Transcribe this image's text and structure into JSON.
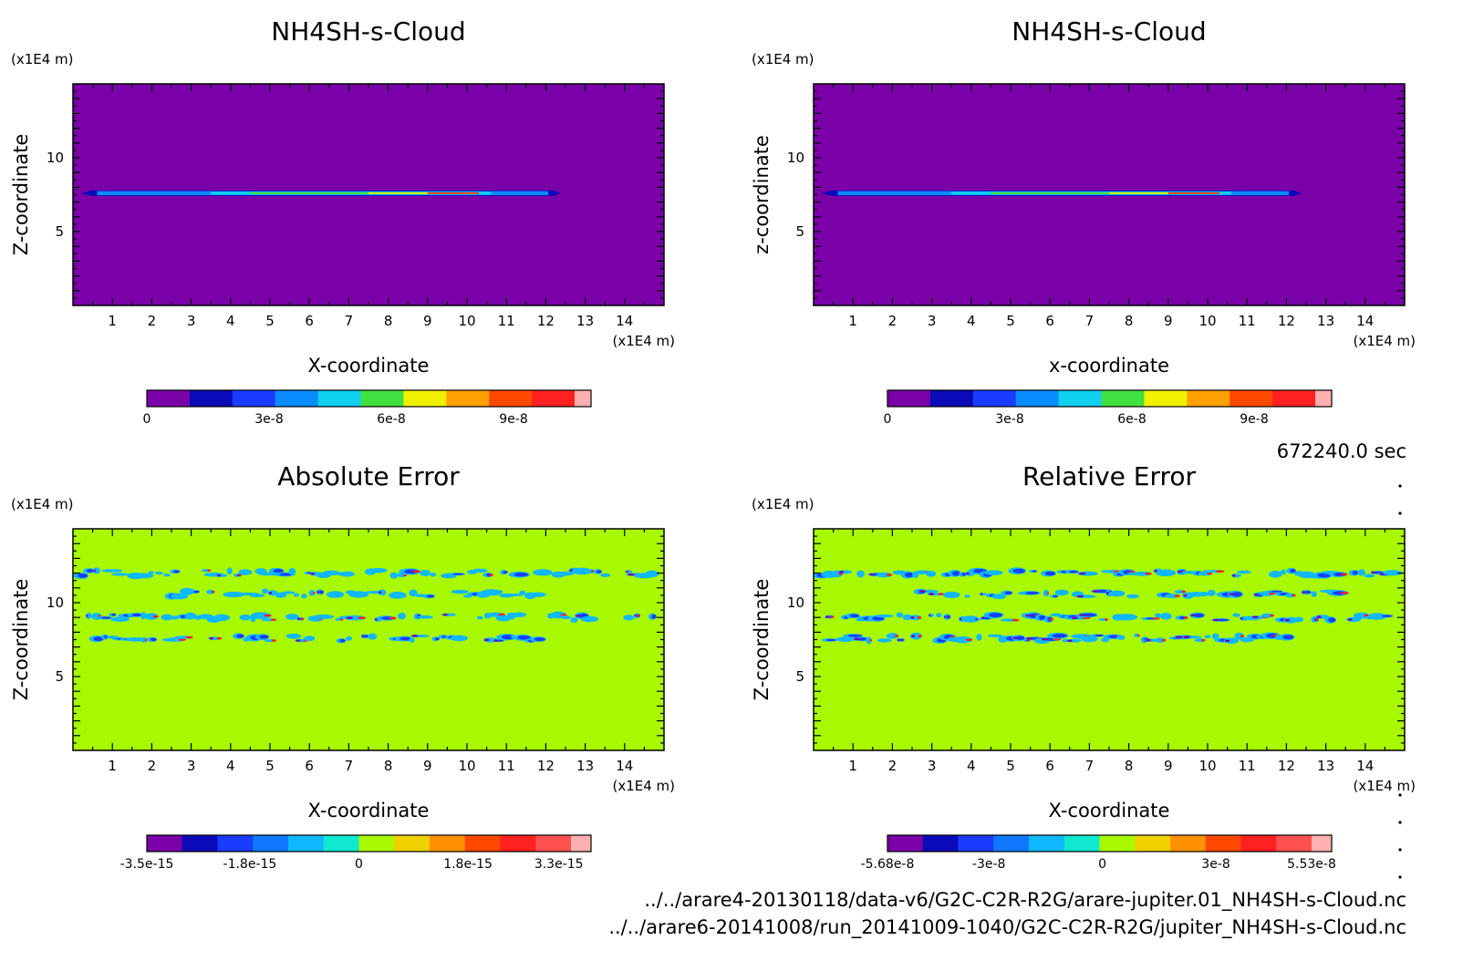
{
  "figure": {
    "time_label": "672240.0 sec",
    "file_lines": [
      "../../arare4-20130118/data-v6/G2C-C2R-R2G/arare-jupiter.01_NH4SH-s-Cloud.nc",
      "../../arare6-20141008/run_20141009-1040/G2C-C2R-R2G/jupiter_NH4SH-s-Cloud.nc"
    ]
  },
  "colors": {
    "cloud_scale": [
      "#7a00a8",
      "#0a0ab8",
      "#1a3cff",
      "#0a8cff",
      "#10d0f0",
      "#40e040",
      "#f0f000",
      "#ffa000",
      "#ff4800",
      "#ff2020",
      "#ffb0b0"
    ],
    "error_scale": [
      "#7a00a8",
      "#0a0ab8",
      "#1a3cff",
      "#1078ff",
      "#10b8ff",
      "#10e8d0",
      "#a8f800",
      "#f0d000",
      "#ff9000",
      "#ff4800",
      "#ff2020",
      "#ff5050",
      "#ffb0b0"
    ],
    "cloud_bg": "#7a00a8",
    "error_bg": "#a8f800"
  },
  "chart_data": [
    {
      "type": "heatmap",
      "title": "NH4SH-s-Cloud",
      "unit_label_y": "(x1E4 m)",
      "unit_label_x": "(x1E4 m)",
      "xlabel": "X-coordinate",
      "ylabel": "Z-coordinate",
      "xlim": [
        0,
        15
      ],
      "ylim": [
        0,
        15
      ],
      "xticks": [
        1,
        2,
        3,
        4,
        5,
        6,
        7,
        8,
        9,
        10,
        11,
        12,
        13,
        14
      ],
      "yticks": [
        5,
        10
      ],
      "colorbar": {
        "min": 0,
        "max": 1.05e-07,
        "tick_labels": [
          "0",
          "3e-8",
          "6e-8",
          "9e-8"
        ],
        "tick_values": [
          0,
          3e-08,
          6e-08,
          9e-08
        ]
      },
      "features": [
        {
          "kind": "cloud_layer",
          "x_start": 0.2,
          "x_end": 12.2,
          "z": 7.6,
          "peak_x": 10
        }
      ]
    },
    {
      "type": "heatmap",
      "title": "NH4SH-s-Cloud",
      "unit_label_y": "(x1E4 m)",
      "unit_label_x": "(x1E4 m)",
      "xlabel": "x-coordinate",
      "ylabel": "z-coordinate",
      "xlim": [
        0,
        15
      ],
      "ylim": [
        0,
        15
      ],
      "xticks": [
        1,
        2,
        3,
        4,
        5,
        6,
        7,
        8,
        9,
        10,
        11,
        12,
        13,
        14
      ],
      "yticks": [
        5,
        10
      ],
      "colorbar": {
        "min": 0,
        "max": 1.05e-07,
        "tick_labels": [
          "0",
          "3e-8",
          "6e-8",
          "9e-8"
        ],
        "tick_values": [
          0,
          3e-08,
          6e-08,
          9e-08
        ]
      },
      "features": [
        {
          "kind": "cloud_layer",
          "x_start": 0.2,
          "x_end": 12.2,
          "z": 7.6,
          "peak_x": 10
        }
      ]
    },
    {
      "type": "heatmap",
      "title": "Absolute Error",
      "unit_label_y": "(x1E4 m)",
      "unit_label_x": "(x1E4 m)",
      "xlabel": "X-coordinate",
      "ylabel": "Z-coordinate",
      "xlim": [
        0,
        15
      ],
      "ylim": [
        0,
        15
      ],
      "xticks": [
        1,
        2,
        3,
        4,
        5,
        6,
        7,
        8,
        9,
        10,
        11,
        12,
        13,
        14
      ],
      "yticks": [
        5,
        10
      ],
      "colorbar": {
        "min": -3.5e-15,
        "max": 3.5e-15,
        "tick_labels": [
          "-3.5e-15",
          "-1.8e-15",
          "0",
          "1.8e-15",
          "3.3e-15"
        ],
        "tick_values": [
          -3.5e-15,
          -1.8e-15,
          0,
          1.8e-15,
          3.3e-15
        ]
      },
      "error_bands": [
        {
          "z": 12.0,
          "x_start": 0.2,
          "x_end": 14.9,
          "intensity": 0.35
        },
        {
          "z": 10.6,
          "x_start": 2.5,
          "x_end": 12.0,
          "intensity": 0.25
        },
        {
          "z": 9.0,
          "x_start": 0.2,
          "x_end": 14.9,
          "intensity": 0.4
        },
        {
          "z": 7.6,
          "x_start": 0.2,
          "x_end": 12.2,
          "intensity": 0.7
        }
      ]
    },
    {
      "type": "heatmap",
      "title": "Relative Error",
      "unit_label_y": "(x1E4 m)",
      "unit_label_x": "(x1E4 m)",
      "xlabel": "X-coordinate",
      "ylabel": "Z-coordinate",
      "xlim": [
        0,
        15
      ],
      "ylim": [
        0,
        15
      ],
      "xticks": [
        1,
        2,
        3,
        4,
        5,
        6,
        7,
        8,
        9,
        10,
        11,
        12,
        13,
        14
      ],
      "yticks": [
        5,
        10
      ],
      "colorbar": {
        "min": -5.68e-08,
        "max": 5.53e-08,
        "tick_labels": [
          "-5.68e-8",
          "-3e-8",
          "0",
          "3e-8",
          "5.53e-8"
        ],
        "tick_values": [
          -5.68e-08,
          -3e-08,
          0,
          3e-08,
          5.53e-08
        ]
      },
      "error_bands": [
        {
          "z": 12.0,
          "x_start": 0.2,
          "x_end": 14.9,
          "intensity": 0.7
        },
        {
          "z": 10.6,
          "x_start": 2.5,
          "x_end": 13.5,
          "intensity": 0.6
        },
        {
          "z": 9.0,
          "x_start": 0.2,
          "x_end": 14.9,
          "intensity": 0.8
        },
        {
          "z": 7.6,
          "x_start": 0.2,
          "x_end": 12.2,
          "intensity": 0.85
        }
      ]
    }
  ]
}
